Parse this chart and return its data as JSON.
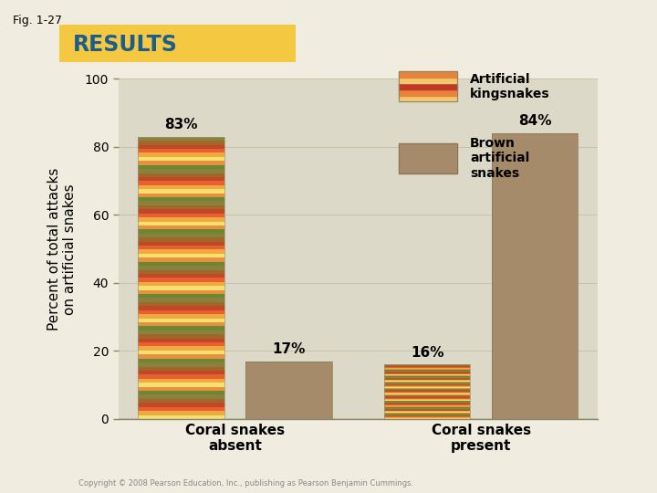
{
  "title": "RESULTS",
  "fig_label": "Fig. 1-27",
  "ylabel": "Percent of total attacks\non artificial snakes",
  "groups": [
    "Coral snakes\nabsent",
    "Coral snakes\npresent"
  ],
  "series": [
    {
      "name": "Artificial\nkingsnakes",
      "values": [
        83,
        16
      ],
      "labels": [
        "83%",
        "16%"
      ]
    },
    {
      "name": "Brown\nartificial\nsnakes",
      "values": [
        17,
        84
      ],
      "labels": [
        "17%",
        "84%"
      ],
      "bar_color": "#A68B6A"
    }
  ],
  "ylim": [
    0,
    100
  ],
  "yticks": [
    0,
    20,
    40,
    60,
    80,
    100
  ],
  "plot_bg_color": "#DDD9C8",
  "title_bg_color": "#F5C842",
  "title_text_color": "#1B5E8C",
  "fig_bg_color": "#F0EDE0",
  "bar_width": 0.28,
  "stripe_colors": [
    "#F5E070",
    "#F0A840",
    "#E86030",
    "#C04828",
    "#A06828",
    "#8A8040",
    "#6B8830",
    "#E89040"
  ],
  "legend_stripe_colors": [
    "#F0C870",
    "#E8843A",
    "#C03828"
  ],
  "copyright": "Copyright © 2008 Pearson Education, Inc., publishing as Pearson Benjamin Cummings."
}
